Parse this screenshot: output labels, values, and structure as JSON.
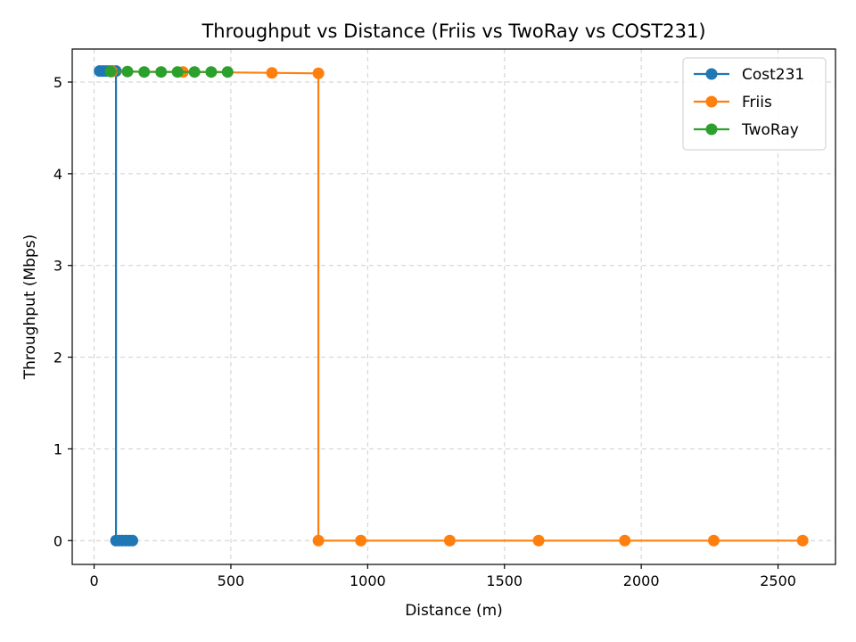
{
  "chart_data": {
    "type": "line",
    "title": "Throughput vs Distance (Friis vs TwoRay vs COST231)",
    "xlabel": "Distance (m)",
    "ylabel": "Throughput (Mbps)",
    "xlim": [
      -80,
      2710
    ],
    "ylim": [
      -0.26,
      5.36
    ],
    "xticks": [
      0,
      500,
      1000,
      1500,
      2000,
      2500
    ],
    "yticks": [
      0,
      1,
      2,
      3,
      4,
      5
    ],
    "grid": true,
    "legend_position": "top-right",
    "series": [
      {
        "name": "Cost231",
        "color": "#1f77b4",
        "x": [
          20,
          32,
          44,
          56,
          68,
          80,
          80,
          92,
          104,
          116,
          128,
          140
        ],
        "y": [
          5.12,
          5.12,
          5.12,
          5.12,
          5.12,
          5.12,
          0,
          0,
          0,
          0,
          0,
          0
        ]
      },
      {
        "name": "Friis",
        "color": "#ff7f0e",
        "x": [
          65,
          325,
          650,
          820,
          820,
          975,
          1300,
          1625,
          1940,
          2265,
          2590
        ],
        "y": [
          5.115,
          5.11,
          5.1,
          5.095,
          0,
          0,
          0,
          0,
          0,
          0,
          0
        ]
      },
      {
        "name": "TwoRay",
        "color": "#2ca02c",
        "x": [
          60,
          122,
          183,
          245,
          305,
          367,
          428,
          488
        ],
        "y": [
          5.115,
          5.115,
          5.11,
          5.11,
          5.11,
          5.11,
          5.11,
          5.11
        ]
      }
    ]
  }
}
